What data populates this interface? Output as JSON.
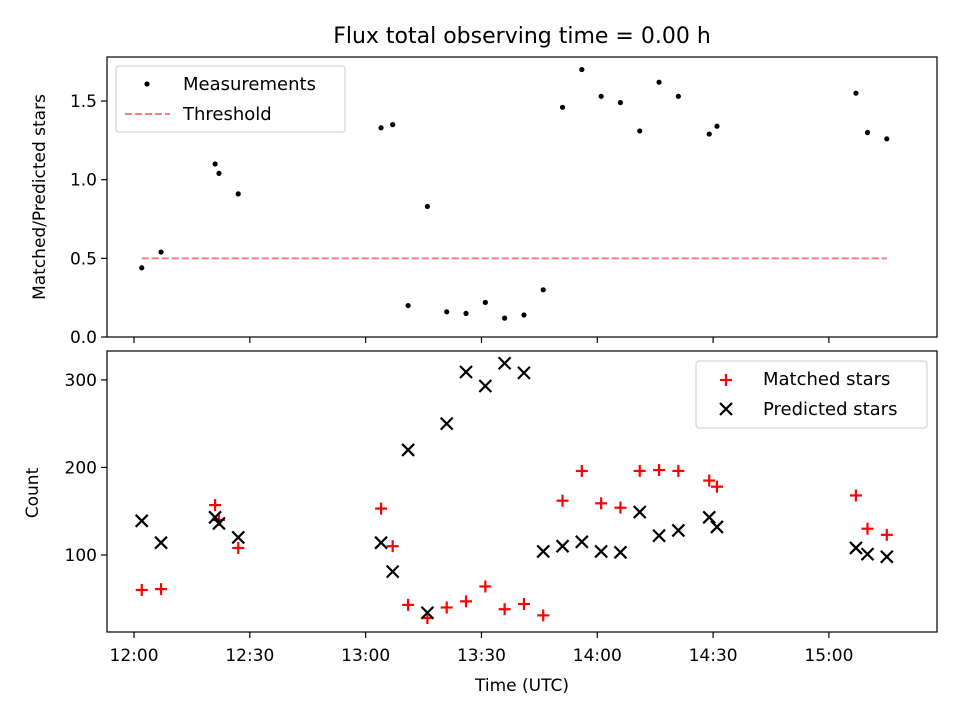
{
  "chart_data": [
    {
      "type": "scatter",
      "title": "Flux total observing time = 0.00 h",
      "xlabel": "",
      "ylabel": "Matched/Predicted stars",
      "xlim": [
        "11:53",
        "15:28"
      ],
      "ylim": [
        0,
        1.78
      ],
      "yticks": [
        0.0,
        0.5,
        1.0,
        1.5
      ],
      "ytick_labels": [
        "0.0",
        "0.5",
        "1.0",
        "1.5"
      ],
      "legend_position": "top-left",
      "series": [
        {
          "name": "Measurements",
          "marker": "dot",
          "color": "#000000",
          "points": [
            [
              "12:02",
              0.44
            ],
            [
              "12:07",
              0.54
            ],
            [
              "12:21",
              1.1
            ],
            [
              "12:22",
              1.04
            ],
            [
              "12:27",
              0.91
            ],
            [
              "13:04",
              1.33
            ],
            [
              "13:07",
              1.35
            ],
            [
              "13:11",
              0.2
            ],
            [
              "13:16",
              0.83
            ],
            [
              "13:21",
              0.16
            ],
            [
              "13:26",
              0.15
            ],
            [
              "13:31",
              0.22
            ],
            [
              "13:36",
              0.12
            ],
            [
              "13:41",
              0.14
            ],
            [
              "13:46",
              0.3
            ],
            [
              "13:51",
              1.46
            ],
            [
              "13:56",
              1.7
            ],
            [
              "14:01",
              1.53
            ],
            [
              "14:06",
              1.49
            ],
            [
              "14:11",
              1.31
            ],
            [
              "14:16",
              1.62
            ],
            [
              "14:21",
              1.53
            ],
            [
              "14:29",
              1.29
            ],
            [
              "14:31",
              1.34
            ],
            [
              "15:07",
              1.55
            ],
            [
              "15:10",
              1.3
            ],
            [
              "15:15",
              1.26
            ]
          ]
        },
        {
          "name": "Threshold",
          "style": "dashed-line",
          "color": "#f28080",
          "points": [
            [
              "12:02",
              0.5
            ],
            [
              "15:15",
              0.5
            ]
          ]
        }
      ]
    },
    {
      "type": "scatter",
      "title": "",
      "xlabel": "Time (UTC)",
      "ylabel": "Count",
      "xlim": [
        "11:53",
        "15:28"
      ],
      "ylim": [
        12,
        333
      ],
      "yticks": [
        100,
        200,
        300
      ],
      "ytick_labels": [
        "100",
        "200",
        "300"
      ],
      "xticks": [
        "12:00",
        "12:30",
        "13:00",
        "13:30",
        "14:00",
        "14:30",
        "15:00"
      ],
      "xtick_labels": [
        "12:00",
        "12:30",
        "13:00",
        "13:30",
        "14:00",
        "14:30",
        "15:00"
      ],
      "legend_position": "top-right",
      "series": [
        {
          "name": "Matched stars",
          "marker": "plus",
          "color": "#ff0000",
          "points": [
            [
              "12:02",
              60
            ],
            [
              "12:07",
              61
            ],
            [
              "12:21",
              157
            ],
            [
              "12:22",
              140
            ],
            [
              "12:27",
              108
            ],
            [
              "13:04",
              153
            ],
            [
              "13:07",
              110
            ],
            [
              "13:11",
              43
            ],
            [
              "13:16",
              28
            ],
            [
              "13:21",
              40
            ],
            [
              "13:26",
              47
            ],
            [
              "13:31",
              64
            ],
            [
              "13:36",
              38
            ],
            [
              "13:41",
              44
            ],
            [
              "13:46",
              31
            ],
            [
              "13:51",
              162
            ],
            [
              "13:56",
              196
            ],
            [
              "14:01",
              159
            ],
            [
              "14:06",
              154
            ],
            [
              "14:11",
              196
            ],
            [
              "14:16",
              197
            ],
            [
              "14:21",
              196
            ],
            [
              "14:29",
              185
            ],
            [
              "14:31",
              178
            ],
            [
              "15:07",
              168
            ],
            [
              "15:10",
              130
            ],
            [
              "15:15",
              123
            ]
          ]
        },
        {
          "name": "Predicted stars",
          "marker": "x",
          "color": "#000000",
          "points": [
            [
              "12:02",
              139
            ],
            [
              "12:07",
              114
            ],
            [
              "12:21",
              143
            ],
            [
              "12:22",
              136
            ],
            [
              "12:27",
              120
            ],
            [
              "13:04",
              114
            ],
            [
              "13:07",
              81
            ],
            [
              "13:11",
              220
            ],
            [
              "13:16",
              34
            ],
            [
              "13:21",
              250
            ],
            [
              "13:26",
              309
            ],
            [
              "13:31",
              293
            ],
            [
              "13:36",
              319
            ],
            [
              "13:41",
              308
            ],
            [
              "13:46",
              104
            ],
            [
              "13:51",
              110
            ],
            [
              "13:56",
              115
            ],
            [
              "14:01",
              104
            ],
            [
              "14:06",
              103
            ],
            [
              "14:11",
              149
            ],
            [
              "14:16",
              122
            ],
            [
              "14:21",
              128
            ],
            [
              "14:29",
              143
            ],
            [
              "14:31",
              132
            ],
            [
              "15:07",
              108
            ],
            [
              "15:10",
              101
            ],
            [
              "15:15",
              98
            ]
          ]
        }
      ]
    }
  ]
}
